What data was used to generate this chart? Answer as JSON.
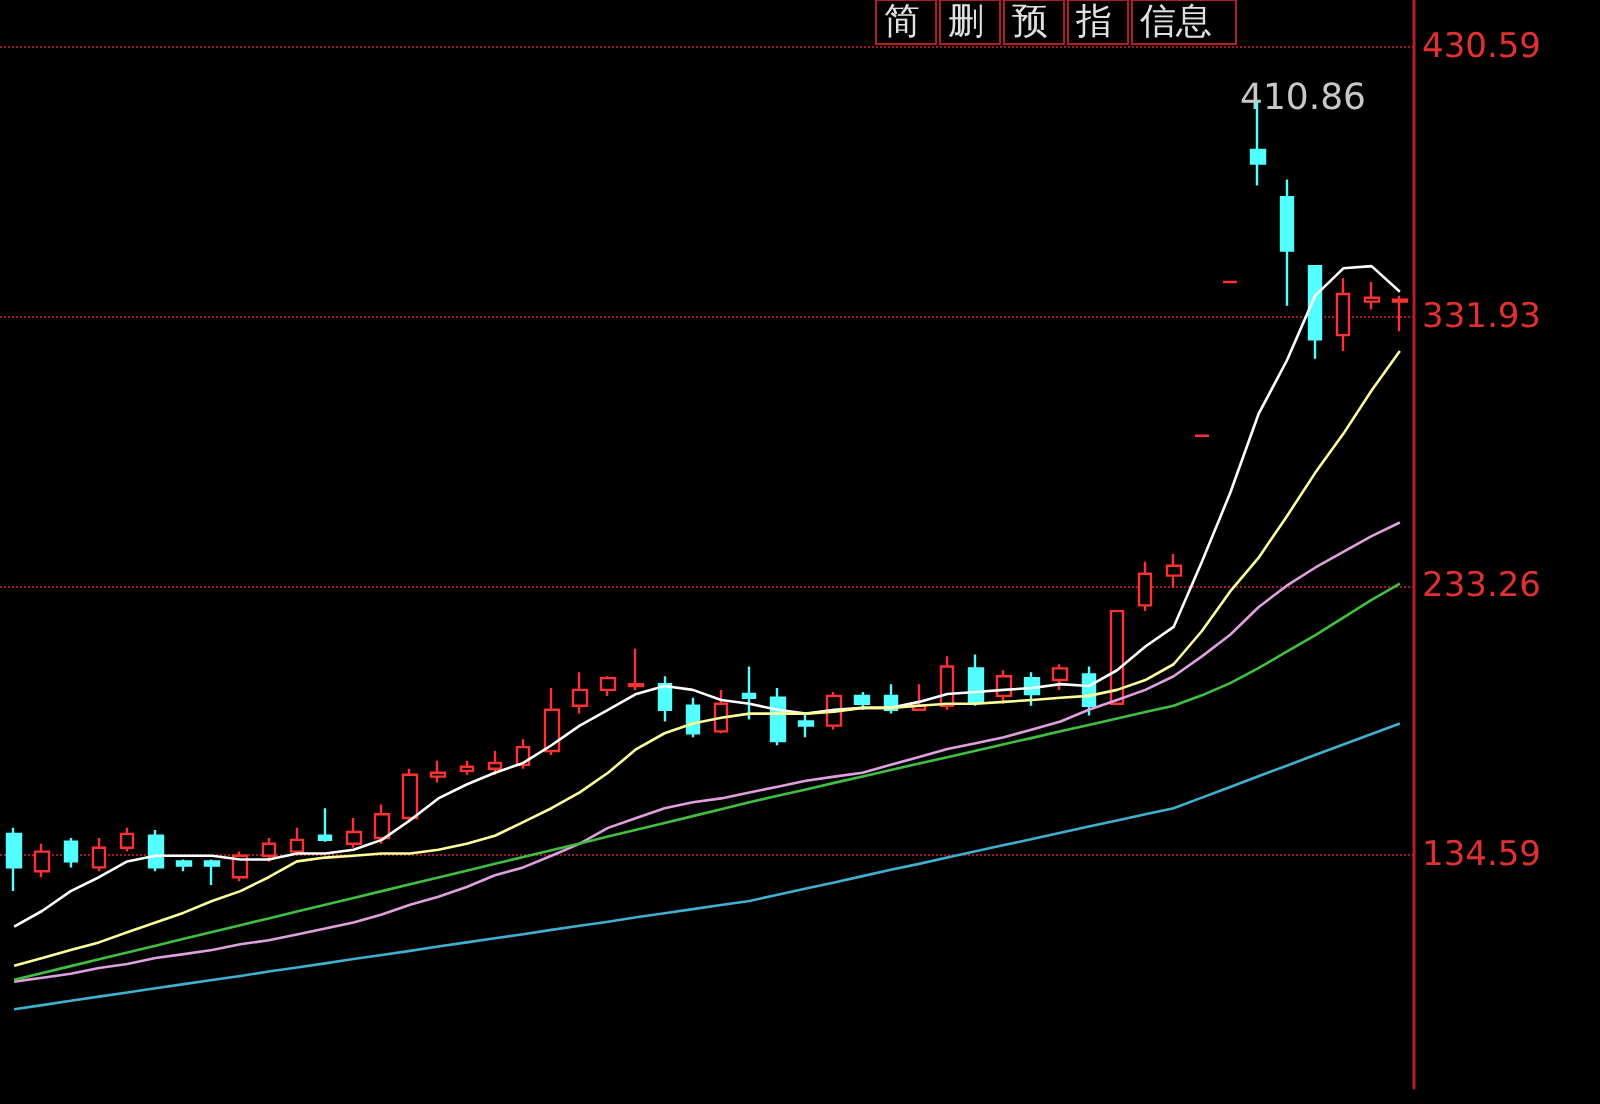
{
  "chart_data": {
    "type": "candlestick",
    "categories": [
      null,
      null,
      null,
      null,
      null,
      null,
      null,
      null,
      null,
      null,
      null,
      null,
      null,
      null,
      null,
      null,
      null,
      null,
      null,
      null,
      null,
      null,
      null,
      null,
      null,
      null,
      null,
      null,
      null,
      null,
      null,
      null,
      null,
      null,
      null,
      null,
      null,
      null,
      null,
      null,
      null,
      null,
      null,
      null,
      null,
      null,
      null,
      null,
      null,
      null
    ],
    "ohlc": [
      [
        142.2,
        144.4,
        121.2,
        129.9
      ],
      [
        128.5,
        138.6,
        126.3,
        135.7
      ],
      [
        139.3,
        140.7,
        129.9,
        132.1
      ],
      [
        129.9,
        140.7,
        128.5,
        137.1
      ],
      [
        137.1,
        144.4,
        135.7,
        142.2
      ],
      [
        141.5,
        143.6,
        128.5,
        129.9
      ],
      [
        132.1,
        132.8,
        128.5,
        130.6
      ],
      [
        132.1,
        132.8,
        123.4,
        130.6
      ],
      [
        126.3,
        135.7,
        124.8,
        134.2
      ],
      [
        134.2,
        140.7,
        132.1,
        138.6
      ],
      [
        135.7,
        144.4,
        134.2,
        140.0
      ],
      [
        141.5,
        151.6,
        139.3,
        140.0
      ],
      [
        138.6,
        148.0,
        137.1,
        142.9
      ],
      [
        140.7,
        153.0,
        138.6,
        149.4
      ],
      [
        148.0,
        166.1,
        146.5,
        163.9
      ],
      [
        163.2,
        169.0,
        161.0,
        164.6
      ],
      [
        165.3,
        169.0,
        163.9,
        166.8
      ],
      [
        166.1,
        172.6,
        163.9,
        168.2
      ],
      [
        167.5,
        176.9,
        166.1,
        174.0
      ],
      [
        172.6,
        195.7,
        171.1,
        187.7
      ],
      [
        189.2,
        201.5,
        186.3,
        195.0
      ],
      [
        195.0,
        200.0,
        192.8,
        199.3
      ],
      [
        196.4,
        210.1,
        195.0,
        197.1
      ],
      [
        197.1,
        200.0,
        183.4,
        187.7
      ],
      [
        189.2,
        192.1,
        177.6,
        179.1
      ],
      [
        179.8,
        195.0,
        179.1,
        189.9
      ],
      [
        193.5,
        203.6,
        184.1,
        192.1
      ],
      [
        192.1,
        195.7,
        174.7,
        176.2
      ],
      [
        183.4,
        186.3,
        177.6,
        181.9
      ],
      [
        181.9,
        194.2,
        180.5,
        192.8
      ],
      [
        192.8,
        194.2,
        187.7,
        189.9
      ],
      [
        192.8,
        197.1,
        186.3,
        187.7
      ],
      [
        187.7,
        197.1,
        187.7,
        189.2
      ],
      [
        189.2,
        207.3,
        187.7,
        203.6
      ],
      [
        202.9,
        208.0,
        189.2,
        190.6
      ],
      [
        192.8,
        202.2,
        189.9,
        200.0
      ],
      [
        199.3,
        201.5,
        189.2,
        193.5
      ],
      [
        198.6,
        204.4,
        195.0,
        202.9
      ],
      [
        200.7,
        203.6,
        185.6,
        189.2
      ],
      [
        189.9,
        223.9,
        189.9,
        223.9
      ],
      [
        226.0,
        242.0,
        223.9,
        237.6
      ],
      [
        236.9,
        244.8,
        232.5,
        240.5
      ],
      [
        288.2,
        288.2,
        288.2,
        288.2
      ],
      [
        344.6,
        344.6,
        344.6,
        344.6
      ],
      [
        393.0,
        410.86,
        380.0,
        388.0
      ],
      [
        375.7,
        382.2,
        335.9,
        356.1
      ],
      [
        350.4,
        350.4,
        316.4,
        323.6
      ],
      [
        325.1,
        346.0,
        319.3,
        340.2
      ],
      [
        337.4,
        344.6,
        334.5,
        338.8
      ],
      [
        337.4,
        339.5,
        326.5,
        338.1
      ]
    ],
    "colors": [
      "#54ffff",
      "#ff3232",
      "#54ffff",
      "#ff3232",
      "#ff3232",
      "#54ffff",
      "#54ffff",
      "#54ffff",
      "#ff3232",
      "#ff3232",
      "#ff3232",
      "#54ffff",
      "#ff3232",
      "#ff3232",
      "#ff3232",
      "#ff3232",
      "#ff3232",
      "#ff3232",
      "#ff3232",
      "#ff3232",
      "#ff3232",
      "#ff3232",
      "#ff3232",
      "#54ffff",
      "#54ffff",
      "#ff3232",
      "#54ffff",
      "#54ffff",
      "#54ffff",
      "#ff3232",
      "#54ffff",
      "#54ffff",
      "#ff3232",
      "#ff3232",
      "#54ffff",
      "#ff3232",
      "#54ffff",
      "#ff3232",
      "#54ffff",
      "#ff3232",
      "#ff3232",
      "#ff3232",
      "#ff3232",
      "#ff3232",
      "#54ffff",
      "#54ffff",
      "#54ffff",
      "#ff3232",
      "#ff3232",
      "#ff3232"
    ],
    "series": [
      {
        "type": "line",
        "color": "#ffffff",
        "values": [
          108.2,
          114.0,
          121.2,
          126.3,
          132.1,
          134.2,
          134.2,
          134.2,
          132.8,
          132.8,
          135.0,
          135.0,
          136.4,
          140.0,
          147.2,
          155.2,
          160.3,
          164.6,
          168.2,
          174.7,
          181.9,
          187.7,
          193.5,
          196.4,
          195.0,
          191.3,
          189.9,
          187.7,
          186.3,
          187.7,
          188.4,
          188.4,
          190.6,
          193.5,
          194.2,
          195.0,
          195.7,
          197.1,
          196.4,
          202.2,
          210.9,
          218.1,
          242.0,
          267.2,
          296.1,
          315.7,
          339.5,
          349.6,
          350.4,
          341.0
        ]
      },
      {
        "type": "line",
        "color": "#ffff99",
        "values": [
          93.8,
          96.7,
          99.6,
          102.4,
          106.1,
          109.7,
          113.3,
          117.6,
          121.2,
          126.3,
          132.1,
          133.5,
          134.2,
          135.0,
          135.0,
          136.4,
          138.6,
          141.5,
          146.5,
          151.6,
          157.4,
          164.6,
          173.3,
          179.1,
          182.7,
          184.8,
          186.3,
          186.3,
          186.3,
          187.0,
          188.4,
          188.4,
          189.2,
          189.9,
          189.9,
          190.6,
          191.3,
          192.1,
          192.8,
          195.0,
          198.6,
          204.4,
          216.6,
          231.1,
          243.4,
          258.6,
          274.5,
          288.9,
          304.8,
          319.3
        ]
      },
      {
        "type": "line",
        "color": "#e0a0e0",
        "values": [
          88.0,
          89.4,
          90.9,
          93.0,
          94.5,
          96.7,
          98.1,
          99.6,
          101.7,
          103.2,
          105.3,
          107.5,
          109.7,
          112.6,
          116.2,
          119.1,
          122.7,
          127.0,
          129.9,
          134.2,
          138.6,
          144.4,
          148.0,
          151.6,
          153.8,
          155.2,
          157.4,
          159.5,
          161.7,
          163.2,
          164.6,
          167.5,
          170.4,
          173.3,
          175.4,
          177.6,
          180.5,
          183.4,
          187.7,
          191.3,
          195.0,
          200.0,
          207.3,
          215.2,
          225.3,
          233.2,
          239.8,
          245.6,
          251.4,
          256.4
        ]
      },
      {
        "type": "line",
        "color": "#40c040",
        "values": [
          88.7,
          91.2,
          93.7,
          96.2,
          98.7,
          101.2,
          103.7,
          106.2,
          108.7,
          111.2,
          113.7,
          116.2,
          118.7,
          121.2,
          123.7,
          126.2,
          128.7,
          131.2,
          133.7,
          136.2,
          138.7,
          141.2,
          143.7,
          146.2,
          148.7,
          151.2,
          153.8,
          156.2,
          158.5,
          160.9,
          163.2,
          165.6,
          168.0,
          170.3,
          172.7,
          175.1,
          177.4,
          179.8,
          182.1,
          184.5,
          186.9,
          189.2,
          193.0,
          197.5,
          203.0,
          209.0,
          215.0,
          221.5,
          228.0,
          234.0
        ]
      },
      {
        "type": "line",
        "color": "#40b0d0",
        "values": [
          77.9,
          79.4,
          81.0,
          82.5,
          84.0,
          85.6,
          87.1,
          88.6,
          90.1,
          91.7,
          93.2,
          94.7,
          96.3,
          97.8,
          99.3,
          100.9,
          102.4,
          103.9,
          105.4,
          107.0,
          108.5,
          110.0,
          111.6,
          113.1,
          114.6,
          116.1,
          117.6,
          119.9,
          122.2,
          124.4,
          126.7,
          129.0,
          131.2,
          133.5,
          135.8,
          138.1,
          140.3,
          142.6,
          144.9,
          147.1,
          149.4,
          151.6,
          155.5,
          159.4,
          163.3,
          167.2,
          171.1,
          175.0,
          178.8,
          182.7
        ]
      }
    ],
    "ylim": [
      49,
      448
    ],
    "yticks": [
      134.59,
      233.26,
      331.93,
      430.59
    ],
    "grid": "y",
    "marker": "none",
    "annotations": [
      "410.86",
      "简",
      "删",
      "预",
      "指",
      "信息"
    ]
  }
}
